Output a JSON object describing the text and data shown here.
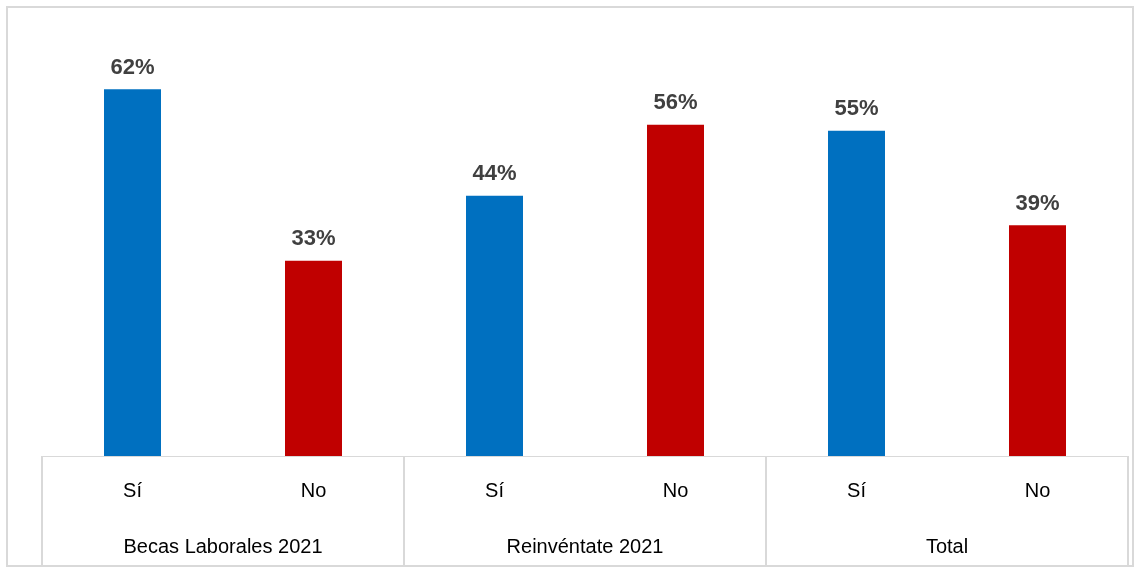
{
  "chart_data": {
    "type": "bar",
    "categories": [
      "Sí",
      "No",
      "Sí",
      "No",
      "Sí",
      "No"
    ],
    "values": [
      62,
      33,
      44,
      56,
      55,
      39
    ],
    "colors": [
      "#0070c0",
      "#c00000",
      "#0070c0",
      "#c00000",
      "#0070c0",
      "#c00000"
    ],
    "value_labels": [
      "62%",
      "33%",
      "44%",
      "56%",
      "55%",
      "39%"
    ],
    "annotations": [
      "Becas Laborales 2021",
      "Reinvéntate 2021",
      "Total"
    ]
  }
}
